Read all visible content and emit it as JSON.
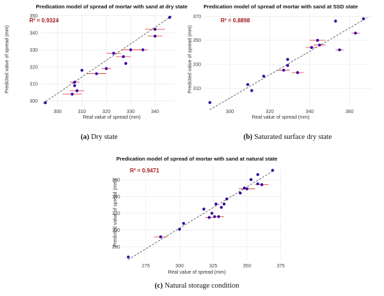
{
  "chart_data": [
    {
      "type": "scatter",
      "title": "Predication model of spread of mortar with sand at dry state",
      "xlabel": "Real value of spread (mm)",
      "ylabel": "Predicted value of spread (mm)",
      "annotation": "R² = 0.9324",
      "caption_letter": "(a)",
      "caption_text": "Dry state",
      "xlim": [
        293,
        348
      ],
      "ylim": [
        297,
        351
      ],
      "xticks": [
        300,
        310,
        320,
        330,
        340
      ],
      "yticks": [
        300,
        310,
        320,
        330,
        340,
        350
      ],
      "trendline": [
        [
          294,
          298.6
        ],
        [
          347,
          350
        ]
      ],
      "x": [
        295,
        306,
        308,
        307,
        307,
        310,
        316,
        320,
        323,
        327,
        328,
        330,
        335,
        340,
        340,
        346
      ],
      "y": [
        299,
        304,
        306,
        309,
        311,
        318,
        316,
        319,
        328,
        326,
        322,
        330,
        330,
        338,
        342,
        349
      ],
      "xerr": [
        0,
        4,
        3,
        0,
        2,
        0,
        4,
        2,
        3,
        3,
        0,
        4,
        2,
        3,
        4,
        0
      ]
    },
    {
      "type": "scatter",
      "title": "Predication model of spread of mortar with sand at SSD state",
      "xlabel": "Real value of spread (mm)",
      "ylabel": "Predicted value of spread (mm)",
      "annotation": "R² = 0.8898",
      "caption_letter": "(b)",
      "caption_text": "Saturated surface dry state",
      "xlim": [
        287,
        371
      ],
      "ylim": [
        295,
        372
      ],
      "xticks": [
        300,
        320,
        340,
        360
      ],
      "yticks": [
        310,
        330,
        350,
        370
      ],
      "trendline": [
        [
          290,
          292
        ],
        [
          369,
          369
        ]
      ],
      "x": [
        290,
        309,
        311,
        317,
        327,
        329,
        329,
        334,
        341,
        344,
        345,
        353,
        355,
        363,
        367
      ],
      "y": [
        298,
        313,
        308,
        320,
        325,
        329,
        334,
        323,
        344,
        350,
        346,
        366,
        342,
        356,
        368
      ],
      "xerr": [
        0,
        0,
        0,
        0,
        3,
        0,
        0,
        3,
        3,
        4,
        3,
        0,
        2,
        2,
        0
      ]
    },
    {
      "type": "scatter",
      "title": "Predication model of spread of mortar with sand at natural state",
      "xlabel": "Real value of spread (mm)",
      "ylabel": "Predicted value of spread (mm)",
      "annotation": "R² = 0.9471",
      "caption_letter": "(c)",
      "caption_text": "Natural storage condition",
      "xlim": [
        258,
        376
      ],
      "ylim": [
        264,
        376
      ],
      "xticks": [
        275,
        300,
        325,
        350,
        375
      ],
      "yticks": [
        280,
        300,
        320,
        340,
        360
      ],
      "trendline": [
        [
          262,
          265
        ],
        [
          370,
          371
        ]
      ],
      "x": [
        262,
        286,
        300,
        303,
        318,
        322,
        324,
        326,
        327,
        329,
        331,
        333,
        335,
        345,
        348,
        350,
        353,
        358,
        358,
        361,
        369
      ],
      "y": [
        268,
        292,
        301,
        308,
        325,
        315,
        320,
        316,
        331,
        316,
        327,
        331,
        337,
        344,
        350,
        349,
        360,
        355,
        366,
        354,
        371
      ],
      "xerr": [
        0,
        5,
        0,
        0,
        0,
        3,
        0,
        0,
        0,
        4,
        0,
        0,
        0,
        0,
        0,
        6,
        0,
        0,
        0,
        5,
        0
      ]
    }
  ]
}
